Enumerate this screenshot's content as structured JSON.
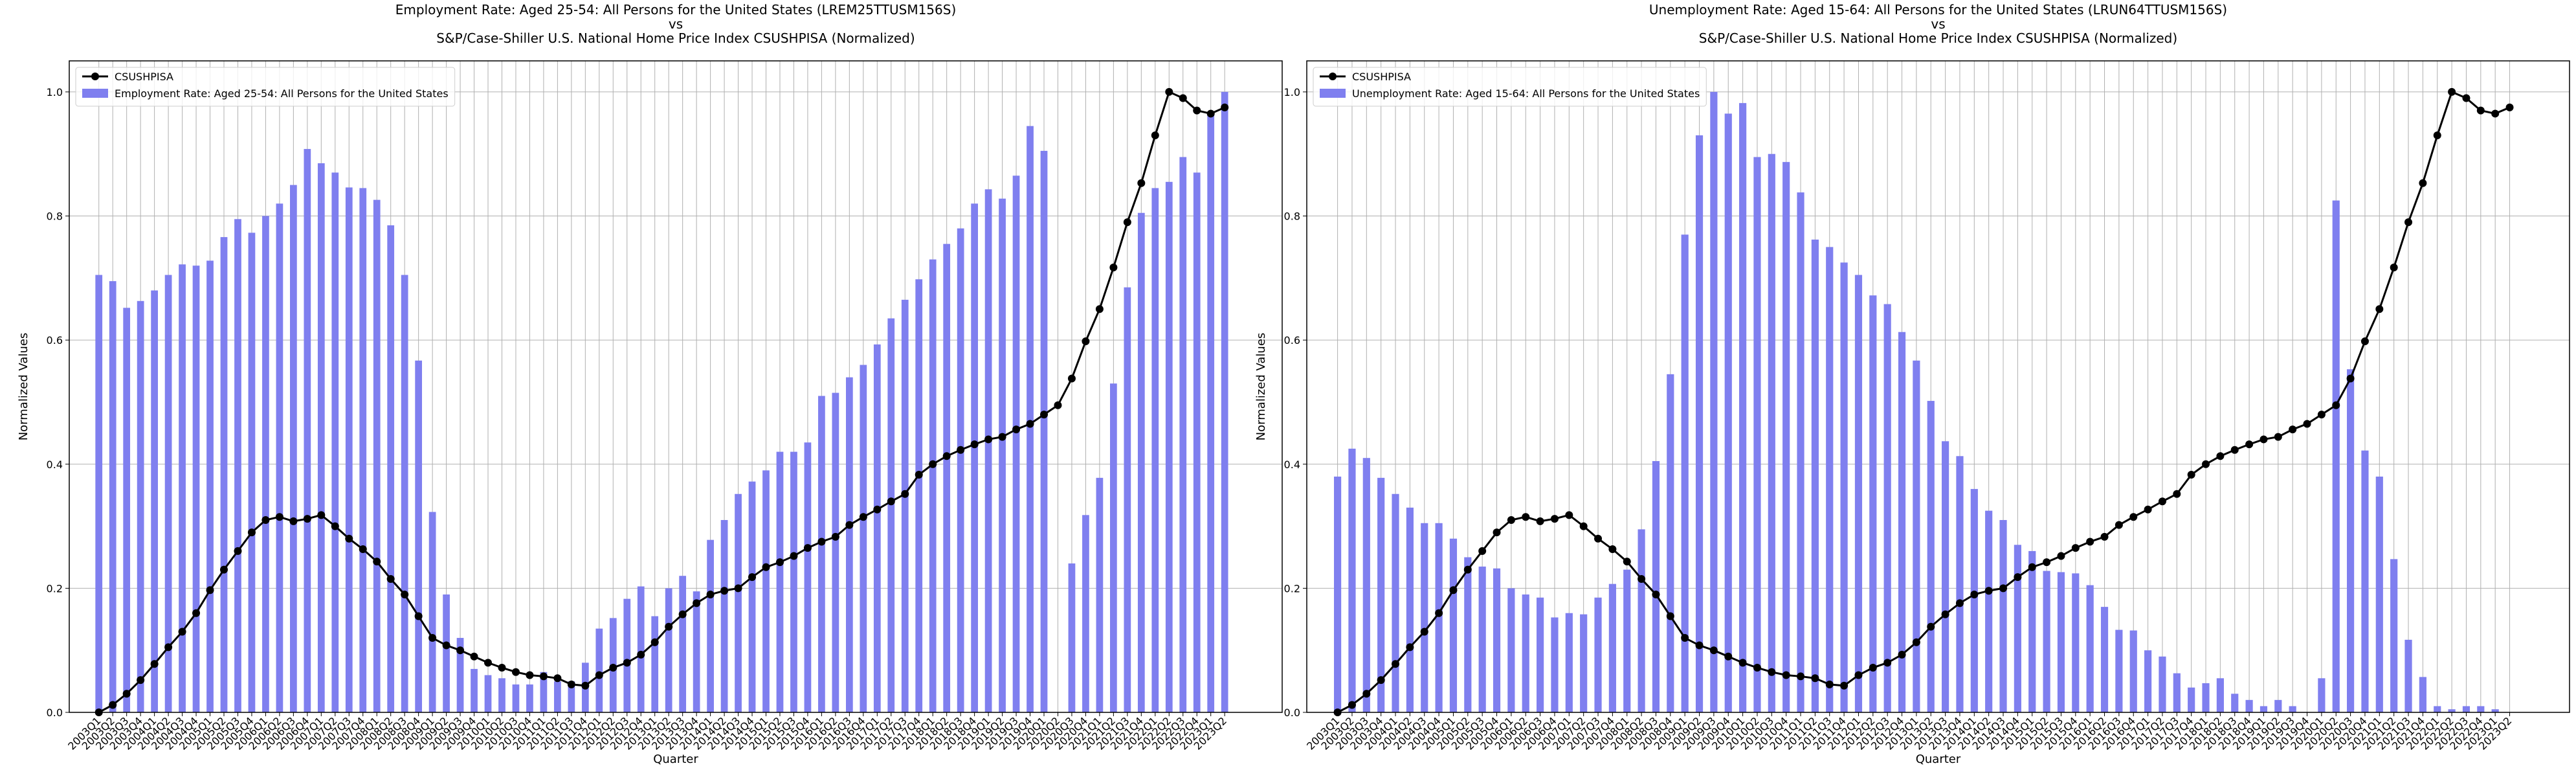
{
  "chart_data": [
    {
      "type": "bar_line",
      "title": [
        "Employment Rate: Aged 25-54: All Persons for the United States (LREM25TTUSM156S)",
        "vs",
        "S&P/Case-Shiller U.S. National Home Price Index CSUSHPISA (Normalized)"
      ],
      "xlabel": "Quarter",
      "ylabel": "Normalized Values",
      "categories": [
        "2003Q1",
        "2003Q2",
        "2003Q3",
        "2003Q4",
        "2004Q1",
        "2004Q2",
        "2004Q3",
        "2004Q4",
        "2005Q1",
        "2005Q2",
        "2005Q3",
        "2005Q4",
        "2006Q1",
        "2006Q2",
        "2006Q3",
        "2006Q4",
        "2007Q1",
        "2007Q2",
        "2007Q3",
        "2007Q4",
        "2008Q1",
        "2008Q2",
        "2008Q3",
        "2008Q4",
        "2009Q1",
        "2009Q2",
        "2009Q3",
        "2009Q4",
        "2010Q1",
        "2010Q2",
        "2010Q3",
        "2010Q4",
        "2011Q1",
        "2011Q2",
        "2011Q3",
        "2011Q4",
        "2012Q1",
        "2012Q2",
        "2012Q3",
        "2012Q4",
        "2013Q1",
        "2013Q2",
        "2013Q3",
        "2013Q4",
        "2014Q1",
        "2014Q2",
        "2014Q3",
        "2014Q4",
        "2015Q1",
        "2015Q2",
        "2015Q3",
        "2015Q4",
        "2016Q1",
        "2016Q2",
        "2016Q3",
        "2016Q4",
        "2017Q1",
        "2017Q2",
        "2017Q3",
        "2017Q4",
        "2018Q1",
        "2018Q2",
        "2018Q3",
        "2018Q4",
        "2019Q1",
        "2019Q2",
        "2019Q3",
        "2019Q4",
        "2020Q1",
        "2020Q2",
        "2020Q3",
        "2020Q4",
        "2021Q1",
        "2021Q2",
        "2021Q3",
        "2021Q4",
        "2022Q1",
        "2022Q2",
        "2022Q3",
        "2022Q4",
        "2023Q1",
        "2023Q2"
      ],
      "series": [
        {
          "name": "CSUSHPISA",
          "kind": "line",
          "color": "#000000",
          "values": [
            0,
            0.012,
            0.03,
            0.052,
            0.078,
            0.105,
            0.13,
            0.16,
            0.197,
            0.23,
            0.26,
            0.29,
            0.31,
            0.315,
            0.308,
            0.312,
            0.318,
            0.3,
            0.28,
            0.263,
            0.243,
            0.215,
            0.19,
            0.155,
            0.12,
            0.108,
            0.1,
            0.09,
            0.08,
            0.072,
            0.065,
            0.06,
            0.058,
            0.055,
            0.045,
            0.043,
            0.06,
            0.072,
            0.08,
            0.093,
            0.113,
            0.138,
            0.158,
            0.176,
            0.19,
            0.196,
            0.2,
            0.218,
            0.234,
            0.242,
            0.252,
            0.265,
            0.275,
            0.283,
            0.302,
            0.315,
            0.327,
            0.34,
            0.352,
            0.383,
            0.4,
            0.413,
            0.423,
            0.432,
            0.44,
            0.444,
            0.456,
            0.465,
            0.48,
            0.495,
            0.538,
            0.598,
            0.65,
            0.717,
            0.79,
            0.853,
            0.93,
            1.0,
            0.99,
            0.97,
            0.965,
            0.975
          ]
        },
        {
          "name": "Employment Rate: Aged 25-54: All Persons for the United States",
          "kind": "bar",
          "color": "#7f7fef",
          "values": [
            0.705,
            0.695,
            0.652,
            0.663,
            0.68,
            0.705,
            0.722,
            0.72,
            0.728,
            0.766,
            0.795,
            0.773,
            0.8,
            0.82,
            0.85,
            0.908,
            0.885,
            0.87,
            0.846,
            0.845,
            0.826,
            0.785,
            0.705,
            0.567,
            0.323,
            0.19,
            0.12,
            0.07,
            0.06,
            0.055,
            0.045,
            0.045,
            0.065,
            0.05,
            0.05,
            0.08,
            0.135,
            0.152,
            0.183,
            0.203,
            0.155,
            0.2,
            0.22,
            0.195,
            0.278,
            0.31,
            0.352,
            0.372,
            0.39,
            0.42,
            0.42,
            0.435,
            0.51,
            0.515,
            0.54,
            0.56,
            0.593,
            0.635,
            0.665,
            0.698,
            0.73,
            0.755,
            0.78,
            0.82,
            0.843,
            0.828,
            0.865,
            0.945,
            0.905,
            0,
            0.24,
            0.318,
            0.378,
            0.53,
            0.685,
            0.805,
            0.845,
            0.855,
            0.895,
            0.87,
            0.965,
            1.0
          ]
        }
      ],
      "ylim": [
        0,
        1.05
      ],
      "yticks": [
        {
          "value": 0,
          "label": "0.0"
        },
        0.2,
        0.4,
        0.6,
        0.8,
        {
          "value": 1,
          "label": "1.0"
        }
      ],
      "grid": true,
      "legend": "upper left"
    },
    {
      "type": "bar_line",
      "title": [
        "Unemployment Rate: Aged 15-64: All Persons for the United States (LRUN64TTUSM156S)",
        "vs",
        "S&P/Case-Shiller U.S. National Home Price Index CSUSHPISA (Normalized)"
      ],
      "xlabel": "Quarter",
      "ylabel": "Normalized Values",
      "categories": [
        "2003Q1",
        "2003Q2",
        "2003Q3",
        "2003Q4",
        "2004Q1",
        "2004Q2",
        "2004Q3",
        "2004Q4",
        "2005Q1",
        "2005Q2",
        "2005Q3",
        "2005Q4",
        "2006Q1",
        "2006Q2",
        "2006Q3",
        "2006Q4",
        "2007Q1",
        "2007Q2",
        "2007Q3",
        "2007Q4",
        "2008Q1",
        "2008Q2",
        "2008Q3",
        "2008Q4",
        "2009Q1",
        "2009Q2",
        "2009Q3",
        "2009Q4",
        "2010Q1",
        "2010Q2",
        "2010Q3",
        "2010Q4",
        "2011Q1",
        "2011Q2",
        "2011Q3",
        "2011Q4",
        "2012Q1",
        "2012Q2",
        "2012Q3",
        "2012Q4",
        "2013Q1",
        "2013Q2",
        "2013Q3",
        "2013Q4",
        "2014Q1",
        "2014Q2",
        "2014Q3",
        "2014Q4",
        "2015Q1",
        "2015Q2",
        "2015Q3",
        "2015Q4",
        "2016Q1",
        "2016Q2",
        "2016Q3",
        "2016Q4",
        "2017Q1",
        "2017Q2",
        "2017Q3",
        "2017Q4",
        "2018Q1",
        "2018Q2",
        "2018Q3",
        "2018Q4",
        "2019Q1",
        "2019Q2",
        "2019Q3",
        "2019Q4",
        "2020Q1",
        "2020Q2",
        "2020Q3",
        "2020Q4",
        "2021Q1",
        "2021Q2",
        "2021Q3",
        "2021Q4",
        "2022Q1",
        "2022Q2",
        "2022Q3",
        "2022Q4",
        "2023Q1",
        "2023Q2"
      ],
      "series": [
        {
          "name": "CSUSHPISA",
          "kind": "line",
          "color": "#000000",
          "values": [
            0,
            0.012,
            0.03,
            0.052,
            0.078,
            0.105,
            0.13,
            0.16,
            0.197,
            0.23,
            0.26,
            0.29,
            0.31,
            0.315,
            0.308,
            0.312,
            0.318,
            0.3,
            0.28,
            0.263,
            0.243,
            0.215,
            0.19,
            0.155,
            0.12,
            0.108,
            0.1,
            0.09,
            0.08,
            0.072,
            0.065,
            0.06,
            0.058,
            0.055,
            0.045,
            0.043,
            0.06,
            0.072,
            0.08,
            0.093,
            0.113,
            0.138,
            0.158,
            0.176,
            0.19,
            0.196,
            0.2,
            0.218,
            0.234,
            0.242,
            0.252,
            0.265,
            0.275,
            0.283,
            0.302,
            0.315,
            0.327,
            0.34,
            0.352,
            0.383,
            0.4,
            0.413,
            0.423,
            0.432,
            0.44,
            0.444,
            0.456,
            0.465,
            0.48,
            0.495,
            0.538,
            0.598,
            0.65,
            0.717,
            0.79,
            0.853,
            0.93,
            1.0,
            0.99,
            0.97,
            0.965,
            0.975
          ]
        },
        {
          "name": "Unemployment Rate: Aged 15-64: All Persons for the United States",
          "kind": "bar",
          "color": "#7f7fef",
          "values": [
            0.38,
            0.425,
            0.41,
            0.378,
            0.352,
            0.33,
            0.305,
            0.305,
            0.28,
            0.25,
            0.235,
            0.232,
            0.2,
            0.19,
            0.185,
            0.153,
            0.16,
            0.158,
            0.185,
            0.207,
            0.23,
            0.295,
            0.405,
            0.545,
            0.77,
            0.93,
            1.0,
            0.965,
            0.982,
            0.895,
            0.9,
            0.887,
            0.838,
            0.762,
            0.75,
            0.725,
            0.705,
            0.672,
            0.658,
            0.613,
            0.567,
            0.502,
            0.437,
            0.413,
            0.36,
            0.325,
            0.31,
            0.27,
            0.26,
            0.228,
            0.226,
            0.224,
            0.205,
            0.17,
            0.133,
            0.132,
            0.1,
            0.09,
            0.063,
            0.04,
            0.047,
            0.055,
            0.03,
            0.02,
            0.01,
            0.02,
            0.01,
            0,
            0.055,
            0.825,
            0.553,
            0.422,
            0.38,
            0.247,
            0.117,
            0.057,
            0.01,
            0.005,
            0.01,
            0.01,
            0.005,
            0
          ]
        }
      ],
      "ylim": [
        0,
        1.05
      ],
      "yticks": [
        {
          "value": 0,
          "label": "0.0"
        },
        0.2,
        0.4,
        0.6,
        0.8,
        {
          "value": 1,
          "label": "1.0"
        }
      ],
      "grid": true,
      "legend": "upper left"
    }
  ]
}
